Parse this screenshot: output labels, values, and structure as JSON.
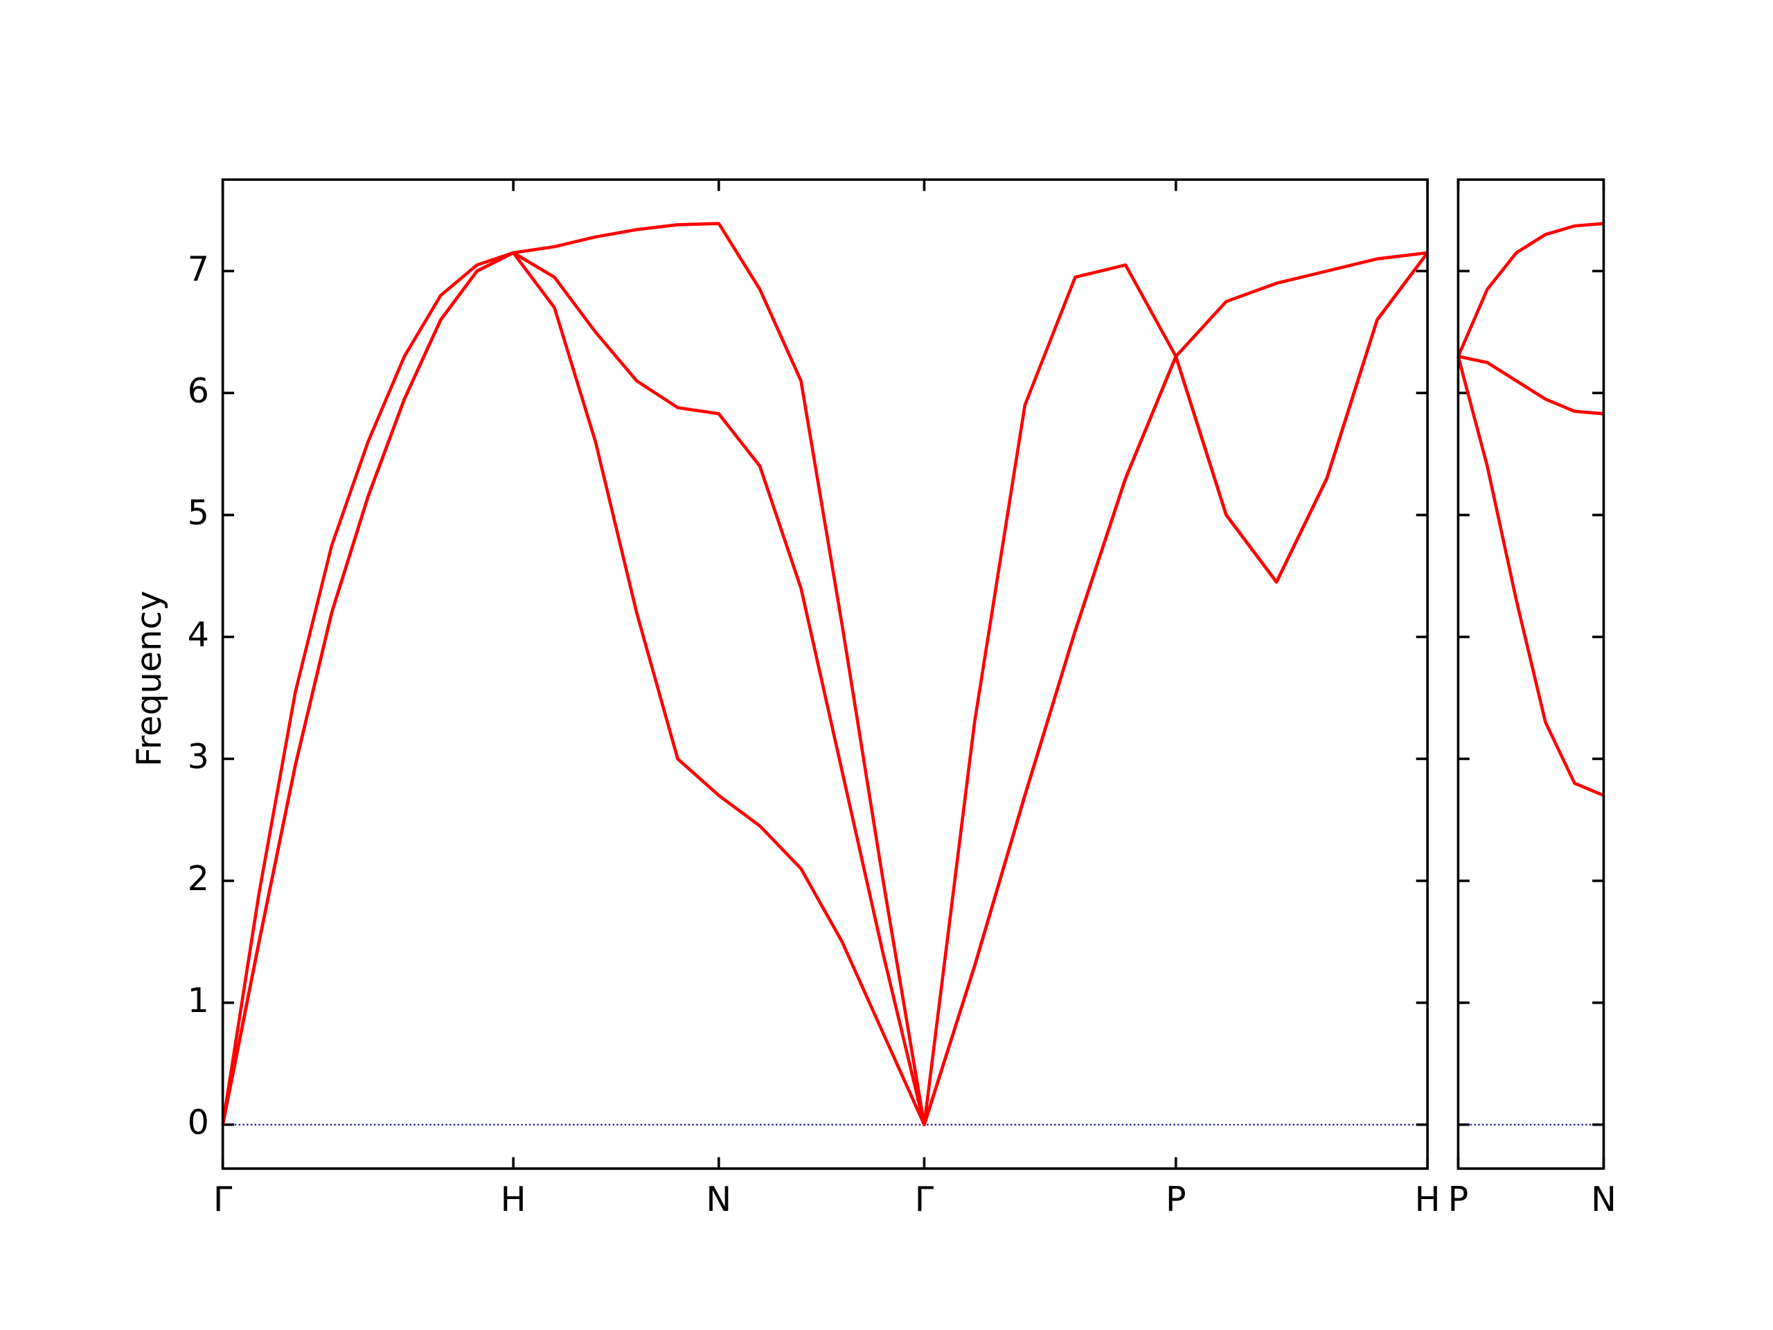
{
  "chart_data": [
    {
      "type": "line",
      "ylabel": "Frequency",
      "x": [
        0,
        0.125,
        0.25,
        0.375,
        0.5,
        0.625,
        0.75,
        0.875,
        1,
        1.1414,
        1.2828,
        1.4243,
        1.5657,
        1.7071,
        1.8485,
        1.9899,
        2.1314,
        2.2728,
        2.4142,
        2.5874,
        2.7606,
        2.9338,
        3.107,
        3.2802,
        3.4534,
        3.6266,
        3.7998,
        3.973,
        4.1462
      ],
      "series": [
        {
          "color": "#ff0000",
          "values": [
            0,
            1.5,
            2.95,
            4.2,
            5.15,
            5.95,
            6.6,
            7.0,
            7.15,
            6.7,
            5.6,
            4.2,
            3.0,
            2.7,
            2.45,
            2.1,
            1.5,
            0.75,
            0,
            1.3,
            2.7,
            4.05,
            5.3,
            6.3,
            5.0,
            4.45,
            5.3,
            6.6,
            7.15
          ]
        },
        {
          "color": "#ff0000",
          "values": [
            0,
            1.5,
            2.95,
            4.2,
            5.15,
            5.95,
            6.6,
            7.0,
            7.15,
            6.95,
            6.5,
            6.1,
            5.88,
            5.83,
            5.4,
            4.4,
            2.9,
            1.4,
            0,
            1.3,
            2.7,
            4.05,
            5.3,
            6.3,
            5.0,
            4.45,
            5.3,
            6.6,
            7.15
          ]
        },
        {
          "color": "#ff0000",
          "values": [
            0,
            1.9,
            3.55,
            4.75,
            5.6,
            6.3,
            6.8,
            7.05,
            7.15,
            7.2,
            7.28,
            7.34,
            7.38,
            7.39,
            6.85,
            6.1,
            4.1,
            2.0,
            0,
            3.3,
            5.9,
            6.95,
            7.05,
            6.3,
            6.75,
            6.9,
            7.0,
            7.1,
            7.15
          ]
        }
      ],
      "xlim": [
        0,
        4.1462
      ],
      "xticks": [
        {
          "value": 0,
          "label": "Γ"
        },
        {
          "value": 1,
          "label": "H"
        },
        {
          "value": 1.7071,
          "label": "N"
        },
        {
          "value": 2.4142,
          "label": "Γ"
        },
        {
          "value": 3.2802,
          "label": "P"
        },
        {
          "value": 4.1462,
          "label": "H"
        }
      ],
      "ylim": [
        -0.36,
        7.75
      ],
      "yticks": [
        0,
        1,
        2,
        3,
        4,
        5,
        6,
        7
      ],
      "ytick_labels": true,
      "baseline": 0,
      "baseline_color": "#00008b"
    },
    {
      "type": "line",
      "x": [
        4.1462,
        4.2462,
        4.3462,
        4.4462,
        4.5462,
        4.6462
      ],
      "series": [
        {
          "color": "#ff0000",
          "values": [
            6.3,
            6.25,
            6.1,
            5.95,
            5.85,
            5.83
          ]
        },
        {
          "color": "#ff0000",
          "values": [
            6.3,
            5.4,
            4.3,
            3.3,
            2.8,
            2.7
          ]
        },
        {
          "color": "#ff0000",
          "values": [
            6.3,
            6.85,
            7.15,
            7.3,
            7.37,
            7.39
          ]
        }
      ],
      "xlim": [
        4.1462,
        4.6462
      ],
      "xticks": [
        {
          "value": 4.1462,
          "label": "P"
        },
        {
          "value": 4.6462,
          "label": "N"
        }
      ],
      "ylim": [
        -0.36,
        7.75
      ],
      "yticks": [
        0,
        1,
        2,
        3,
        4,
        5,
        6,
        7
      ],
      "ytick_labels": false,
      "baseline": 0,
      "baseline_color": "#00008b"
    }
  ]
}
